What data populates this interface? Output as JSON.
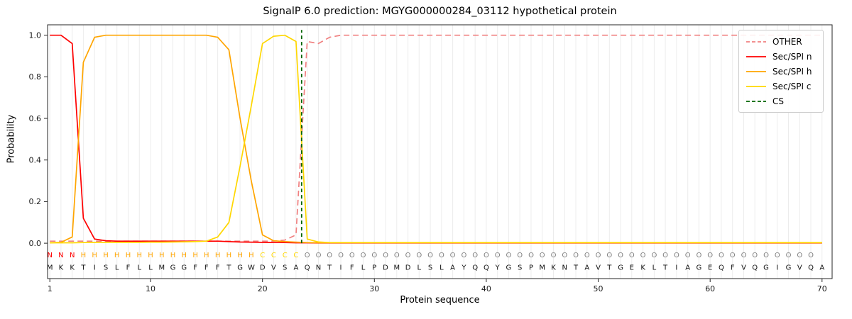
{
  "chart_data": {
    "type": "line",
    "title": "SignalP 6.0 prediction: MGYG000000284_03112 hypothetical protein",
    "xlabel": "Protein sequence",
    "ylabel": "Probability",
    "xlim": [
      0.8,
      70.9
    ],
    "ylim": [
      -0.17,
      1.05
    ],
    "xticks": [
      1,
      10,
      20,
      30,
      40,
      50,
      60,
      70
    ],
    "yticks": [
      0,
      0.2,
      0.4,
      0.6,
      0.8,
      1
    ],
    "grid": true,
    "grid_color": "#ececec",
    "legend_position": "upper right",
    "sequence": "MKKTISLFLLMGGFFFTGWDVSAQNTIFLPDMDLSLAYQQYGSPMKNTAVTGEKLTIAGEQFVQGIGVQA",
    "region_labels": "NNNHHHHHHHHHHHHHHHHCCCCOOOOOOOOOOOOOOOOOOOOOOOOOOOOOOOOOOOOOOOOOOOOOO",
    "region_colors": {
      "N": "#ff0000",
      "H": "#ffa500",
      "C": "#ffd700",
      "O": "#808080"
    },
    "sequence_color": "#111111",
    "series": [
      {
        "name": "OTHER",
        "color": "#f08080",
        "dash": true,
        "values": [
          0.01,
          0.01,
          0.01,
          0.01,
          0.01,
          0.01,
          0.01,
          0.01,
          0.01,
          0.01,
          0.01,
          0.01,
          0.01,
          0.01,
          0.01,
          0.01,
          0.01,
          0.01,
          0.01,
          0.01,
          0.01,
          0.015,
          0.04,
          0.97,
          0.96,
          0.99,
          1.0,
          1.0,
          1.0,
          1.0,
          1.0,
          1.0,
          1.0,
          1.0,
          1.0,
          1.0,
          1.0,
          1.0,
          1.0,
          1.0,
          1.0,
          1.0,
          1.0,
          1.0,
          1.0,
          1.0,
          1.0,
          1.0,
          1.0,
          1.0,
          1.0,
          1.0,
          1.0,
          1.0,
          1.0,
          1.0,
          1.0,
          1.0,
          1.0,
          1.0,
          1.0,
          1.0,
          1.0,
          1.0,
          1.0,
          1.0,
          1.0,
          1.0,
          1.0,
          1.0
        ]
      },
      {
        "name": "Sec/SPI n",
        "color": "#ff0000",
        "dash": false,
        "values": [
          1.0,
          1.0,
          0.96,
          0.12,
          0.02,
          0.012,
          0.01,
          0.01,
          0.01,
          0.01,
          0.01,
          0.01,
          0.01,
          0.01,
          0.01,
          0.01,
          0.008,
          0.006,
          0.005,
          0.004,
          0.003,
          0.003,
          0.002,
          0.002,
          0.001,
          0.001,
          0.001,
          0.001,
          0.001,
          0.001,
          0.001,
          0.001,
          0.001,
          0.001,
          0.001,
          0.001,
          0.001,
          0.001,
          0.001,
          0.001,
          0.001,
          0.001,
          0.001,
          0.001,
          0.001,
          0.001,
          0.001,
          0.001,
          0.001,
          0.001,
          0.001,
          0.001,
          0.001,
          0.001,
          0.001,
          0.001,
          0.001,
          0.001,
          0.001,
          0.001,
          0.001,
          0.001,
          0.001,
          0.001,
          0.001,
          0.001,
          0.001,
          0.001,
          0.001,
          0.001
        ]
      },
      {
        "name": "Sec/SPI h",
        "color": "#ffa500",
        "dash": false,
        "values": [
          0.002,
          0.004,
          0.03,
          0.87,
          0.99,
          1.0,
          1.0,
          1.0,
          1.0,
          1.0,
          1.0,
          1.0,
          1.0,
          1.0,
          1.0,
          0.99,
          0.93,
          0.6,
          0.3,
          0.04,
          0.012,
          0.008,
          0.005,
          0.003,
          0.002,
          0.002,
          0.002,
          0.002,
          0.002,
          0.002,
          0.002,
          0.002,
          0.002,
          0.002,
          0.002,
          0.002,
          0.002,
          0.002,
          0.002,
          0.002,
          0.002,
          0.002,
          0.002,
          0.002,
          0.002,
          0.002,
          0.002,
          0.002,
          0.002,
          0.002,
          0.002,
          0.002,
          0.002,
          0.002,
          0.002,
          0.002,
          0.002,
          0.002,
          0.002,
          0.002,
          0.002,
          0.002,
          0.002,
          0.002,
          0.002,
          0.002,
          0.002,
          0.002,
          0.002,
          0.002
        ]
      },
      {
        "name": "Sec/SPI c",
        "color": "#ffd700",
        "dash": false,
        "values": [
          0.002,
          0.002,
          0.002,
          0.003,
          0.004,
          0.004,
          0.004,
          0.004,
          0.004,
          0.005,
          0.005,
          0.006,
          0.007,
          0.008,
          0.01,
          0.03,
          0.1,
          0.37,
          0.66,
          0.96,
          0.995,
          1.0,
          0.97,
          0.02,
          0.006,
          0.003,
          0.003,
          0.003,
          0.003,
          0.003,
          0.003,
          0.003,
          0.003,
          0.003,
          0.003,
          0.003,
          0.003,
          0.003,
          0.003,
          0.003,
          0.003,
          0.003,
          0.003,
          0.003,
          0.003,
          0.003,
          0.003,
          0.003,
          0.003,
          0.003,
          0.003,
          0.003,
          0.003,
          0.003,
          0.003,
          0.003,
          0.003,
          0.003,
          0.003,
          0.003,
          0.003,
          0.003,
          0.003,
          0.003,
          0.003,
          0.003,
          0.003,
          0.003,
          0.003,
          0.003
        ]
      },
      {
        "name": "CS",
        "color": "#006400",
        "dash": true,
        "type": "vline",
        "x": 23.5
      }
    ]
  }
}
